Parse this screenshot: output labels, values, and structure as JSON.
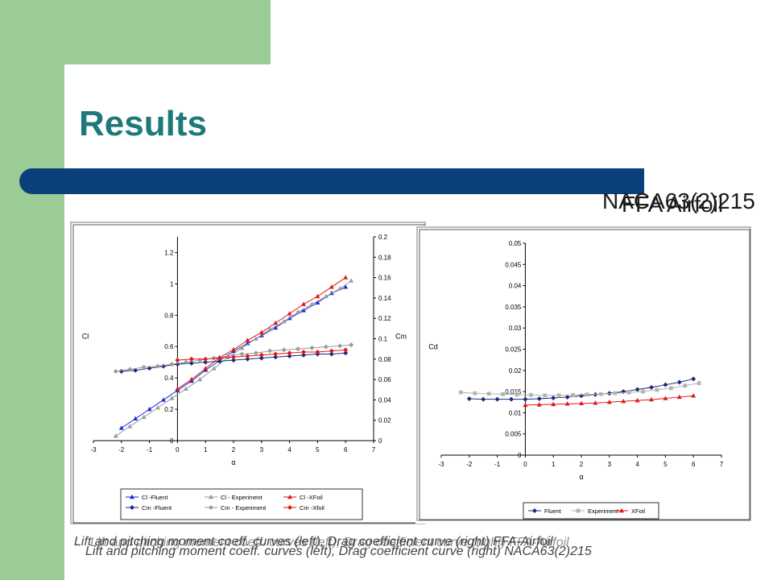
{
  "slide": {
    "title": "Results",
    "overlap_labels": [
      "NACA63(2)215",
      "FFA Airfoil"
    ],
    "captions": [
      "Lift and pitching moment coeff. curves (left), Drag coefficient curve (right) FFA-Airfoil",
      "Lift and pitching moment coeff. curves (left), Drag coefficient curve (right) NACA63(2)215",
      "Lift and pitching moment coeff. curves (left), Drag coefficient curve (right) FFA-Airfoil"
    ]
  },
  "colors": {
    "green": "#9ccc95",
    "navy": "#0b3f79",
    "title": "#1e7a7a",
    "blue": "#1a2fd6",
    "gray": "#9a9a9a",
    "red": "#e01818",
    "navy_series": "#1c2a7a"
  },
  "chart_data": [
    {
      "type": "line",
      "x_label": "α",
      "y_label": "Cl",
      "y2_label": "Cm",
      "xlim": [
        -3,
        7
      ],
      "ylim": [
        0,
        1.3
      ],
      "y2lim": [
        0,
        0.2
      ],
      "x_ticks": [
        -3,
        -2,
        -1,
        0,
        1,
        2,
        3,
        4,
        5,
        6,
        7
      ],
      "y_ticks": [
        0,
        0.2,
        0.4,
        0.6,
        0.8,
        1,
        1.2
      ],
      "y2_ticks": [
        0,
        0.02,
        0.04,
        0.06,
        0.08,
        0.1,
        0.12,
        0.14,
        0.16,
        0.18,
        0.2
      ],
      "legend": "bottom",
      "series": [
        {
          "name": "Cl -Fluent",
          "axis": "left",
          "color": "#1a2fd6",
          "marker": "triangle",
          "x": [
            -2,
            -1.5,
            -1,
            -0.5,
            0,
            0.5,
            1,
            1.5,
            2,
            2.5,
            3,
            3.5,
            4,
            4.5,
            5,
            5.5,
            6
          ],
          "y": [
            0.08,
            0.14,
            0.2,
            0.26,
            0.32,
            0.38,
            0.45,
            0.51,
            0.57,
            0.62,
            0.67,
            0.72,
            0.78,
            0.83,
            0.88,
            0.94,
            0.98
          ]
        },
        {
          "name": "Cl - Experiment",
          "axis": "left",
          "color": "#9a9a9a",
          "marker": "triangle",
          "x": [
            -2.2,
            -1.7,
            -1.2,
            -0.7,
            -0.2,
            0.3,
            0.8,
            1.3,
            1.8,
            2.3,
            2.8,
            3.3,
            3.8,
            4.3,
            4.8,
            5.3,
            5.8,
            6.2
          ],
          "y": [
            0.03,
            0.09,
            0.15,
            0.21,
            0.27,
            0.33,
            0.39,
            0.46,
            0.53,
            0.59,
            0.65,
            0.71,
            0.76,
            0.82,
            0.87,
            0.92,
            0.97,
            1.02
          ]
        },
        {
          "name": "Cl -XFoil",
          "axis": "left",
          "color": "#e01818",
          "marker": "triangle",
          "x": [
            0,
            0.5,
            1,
            1.5,
            2,
            2.5,
            3,
            3.5,
            4,
            4.5,
            5,
            5.5,
            6
          ],
          "y": [
            0.33,
            0.39,
            0.46,
            0.53,
            0.58,
            0.64,
            0.69,
            0.75,
            0.81,
            0.87,
            0.92,
            0.98,
            1.04
          ]
        },
        {
          "name": "Cm -Fluent",
          "axis": "right",
          "color": "#1c2a7a",
          "marker": "diamond",
          "x": [
            -2,
            -1.5,
            -1,
            -0.5,
            0,
            0.5,
            1,
            1.5,
            2,
            2.5,
            3,
            3.5,
            4,
            4.5,
            5,
            5.5,
            6
          ],
          "y": [
            0.068,
            0.069,
            0.071,
            0.073,
            0.075,
            0.076,
            0.077,
            0.078,
            0.079,
            0.08,
            0.081,
            0.082,
            0.083,
            0.084,
            0.085,
            0.085,
            0.086
          ]
        },
        {
          "name": "Cm - Experiment",
          "axis": "right",
          "color": "#9a9a9a",
          "marker": "diamond",
          "x": [
            -2.2,
            -1.7,
            -1.2,
            -0.7,
            -0.2,
            0.3,
            0.8,
            1.3,
            1.8,
            2.3,
            2.8,
            3.3,
            3.8,
            4.3,
            4.8,
            5.3,
            5.8,
            6.2
          ],
          "y": [
            0.068,
            0.07,
            0.072,
            0.073,
            0.075,
            0.077,
            0.079,
            0.081,
            0.083,
            0.085,
            0.086,
            0.088,
            0.089,
            0.09,
            0.091,
            0.092,
            0.093,
            0.094
          ]
        },
        {
          "name": "Cm -Xfoil",
          "axis": "right",
          "color": "#e01818",
          "marker": "diamond",
          "x": [
            0,
            0.5,
            1,
            1.5,
            2,
            2.5,
            3,
            3.5,
            4,
            4.5,
            5,
            5.5,
            6
          ],
          "y": [
            0.079,
            0.08,
            0.08,
            0.081,
            0.082,
            0.083,
            0.084,
            0.085,
            0.086,
            0.087,
            0.087,
            0.088,
            0.089
          ]
        }
      ]
    },
    {
      "type": "line",
      "x_label": "α",
      "y_label": "Cd",
      "xlim": [
        -3,
        7
      ],
      "ylim": [
        0,
        0.05
      ],
      "x_ticks": [
        -3,
        -2,
        -1,
        0,
        1,
        2,
        3,
        4,
        5,
        6,
        7
      ],
      "y_ticks": [
        0,
        0.005,
        0.01,
        0.015,
        0.02,
        0.025,
        0.03,
        0.035,
        0.04,
        0.045,
        0.05
      ],
      "legend": "bottom",
      "series": [
        {
          "name": "Fluent",
          "color": "#1c2a7a",
          "marker": "diamond",
          "x": [
            -2,
            -1.5,
            -1,
            -0.5,
            0,
            0.5,
            1,
            1.5,
            2,
            2.5,
            3,
            3.5,
            4,
            4.5,
            5,
            5.5,
            6
          ],
          "y": [
            0.0133,
            0.0132,
            0.0132,
            0.0132,
            0.0132,
            0.0133,
            0.0135,
            0.0137,
            0.014,
            0.0143,
            0.0146,
            0.015,
            0.0155,
            0.016,
            0.0166,
            0.0172,
            0.018
          ]
        },
        {
          "name": "Experiment",
          "color": "#b4b4b4",
          "marker": "square",
          "x": [
            -2.3,
            -1.8,
            -1.3,
            -0.8,
            -0.3,
            0.2,
            0.7,
            1.2,
            1.7,
            2.2,
            2.7,
            3.2,
            3.7,
            4.2,
            4.7,
            5.2,
            5.7,
            6.2
          ],
          "y": [
            0.0148,
            0.0146,
            0.0145,
            0.0144,
            0.0143,
            0.0142,
            0.0141,
            0.0141,
            0.0142,
            0.0143,
            0.0144,
            0.0146,
            0.0148,
            0.015,
            0.0154,
            0.0158,
            0.0164,
            0.017
          ]
        },
        {
          "name": "XFoil",
          "color": "#e01818",
          "marker": "triangle",
          "x": [
            0,
            0.5,
            1,
            1.5,
            2,
            2.5,
            3,
            3.5,
            4,
            4.5,
            5,
            5.5,
            6
          ],
          "y": [
            0.0118,
            0.0119,
            0.012,
            0.0121,
            0.0122,
            0.0123,
            0.0125,
            0.0127,
            0.0129,
            0.0131,
            0.0134,
            0.0137,
            0.014
          ]
        }
      ]
    }
  ]
}
